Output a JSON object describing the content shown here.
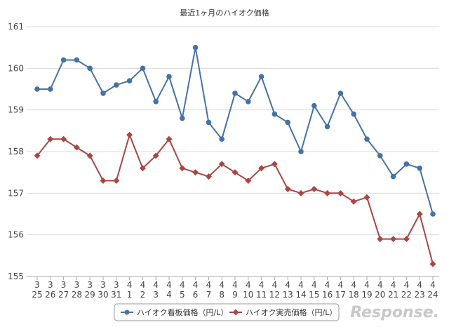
{
  "chart_data": {
    "type": "line",
    "title": "最近1ヶ月のハイオク価格",
    "ylim": [
      155,
      161
    ],
    "y_ticks": [
      "155",
      "156",
      "157",
      "158",
      "159",
      "160",
      "161"
    ],
    "x_months": [
      "3",
      "3",
      "3",
      "3",
      "3",
      "3",
      "3",
      "4",
      "4",
      "4",
      "4",
      "4",
      "4",
      "4",
      "4",
      "4",
      "4",
      "4",
      "4",
      "4",
      "4",
      "4",
      "4",
      "4",
      "4",
      "4",
      "4",
      "4",
      "4",
      "4",
      "4"
    ],
    "x_days": [
      "25",
      "26",
      "27",
      "28",
      "29",
      "30",
      "31",
      "1",
      "2",
      "3",
      "4",
      "5",
      "6",
      "7",
      "8",
      "9",
      "10",
      "11",
      "12",
      "13",
      "14",
      "15",
      "16",
      "17",
      "18",
      "19",
      "20",
      "21",
      "22",
      "23",
      "24"
    ],
    "series": [
      {
        "name": "ハイオク看板価格（円/L）",
        "color": "#4572a7",
        "marker": "circle",
        "values": [
          159.5,
          159.5,
          160.2,
          160.2,
          160.0,
          159.4,
          159.6,
          159.7,
          160.0,
          159.2,
          159.8,
          158.8,
          160.5,
          158.7,
          158.3,
          159.4,
          159.2,
          159.8,
          158.9,
          158.7,
          158.0,
          159.1,
          158.6,
          159.4,
          158.9,
          158.3,
          157.9,
          157.4,
          157.7,
          157.6,
          156.5
        ]
      },
      {
        "name": "ハイオク実売価格（円/L）",
        "color": "#aa4643",
        "marker": "diamond",
        "values": [
          157.9,
          158.3,
          158.3,
          158.1,
          157.9,
          157.3,
          157.3,
          158.4,
          157.6,
          157.9,
          158.3,
          157.6,
          157.5,
          157.4,
          157.7,
          157.5,
          157.3,
          157.6,
          157.7,
          157.1,
          157.0,
          157.1,
          157.0,
          157.0,
          156.8,
          156.9,
          155.9,
          155.9,
          155.9,
          156.5,
          155.3
        ]
      }
    ],
    "grid": true,
    "legend_position": "bottom"
  },
  "watermark": "Response."
}
